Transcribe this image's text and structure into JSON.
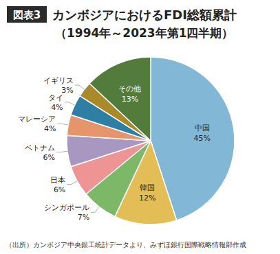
{
  "chart_data": {
    "type": "pie",
    "title": "カンボジアにおけるFDI総額累計",
    "subtitle": "（1994年～2023年第1四半期）",
    "annotations": [
      "図表3",
      "（出所）カンボジア中央銀工統計データより、みずほ銀行国際戦略情報部作成"
    ],
    "categories": [
      "中国",
      "韓国",
      "シンガポール",
      "日本",
      "ベトナム",
      "マレーシア",
      "タイ",
      "イギリス",
      "その他"
    ],
    "values": [
      45,
      12,
      7,
      6,
      6,
      4,
      4,
      3,
      13
    ],
    "value_labels": [
      "45%",
      "12%",
      "7%",
      "6%",
      "6%",
      "4%",
      "4%",
      "3%",
      "13%"
    ],
    "colors": [
      "#82b8d6",
      "#e3bd55",
      "#7db868",
      "#ee9494",
      "#a897c0",
      "#e6956b",
      "#2f7fa5",
      "#a98a2a",
      "#527b3c"
    ],
    "data_labels": true
  }
}
